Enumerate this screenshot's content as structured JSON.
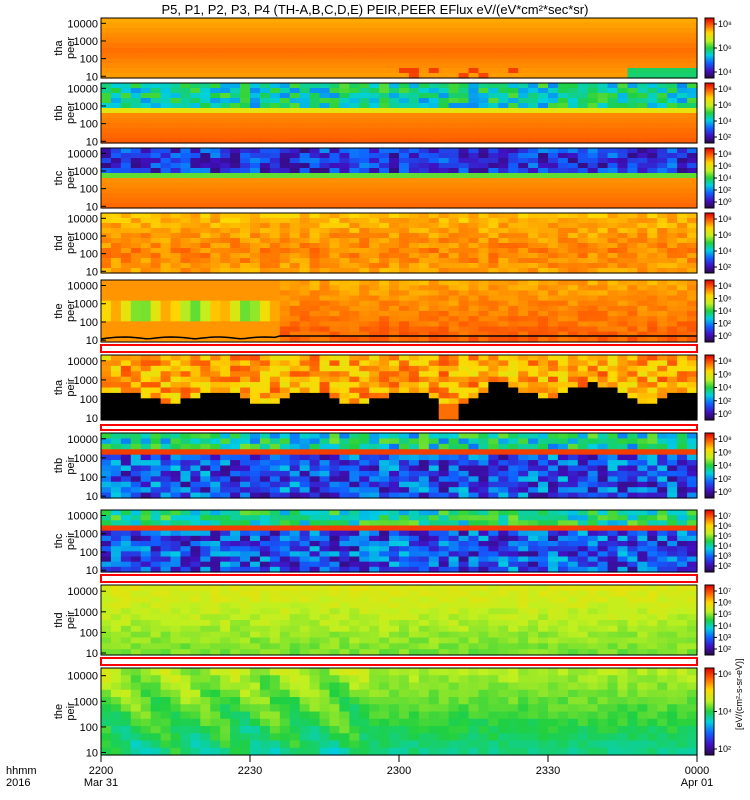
{
  "title": "P5, P1, P2, P3, P4 (TH-A,B,C,D,E) PEIR,PEER EFlux eV/(eV*cm²*sec*sr)",
  "colorbar_unit_label": "[eV/(cm²-s-sr-eV)]",
  "time_axis": {
    "row_label_1": "hhmm",
    "row_label_2": "2016",
    "ticks": [
      {
        "value": "2200",
        "sub": "Mar 31",
        "frac": 0.0
      },
      {
        "value": "2230",
        "sub": "",
        "frac": 0.25
      },
      {
        "value": "2300",
        "sub": "",
        "frac": 0.5
      },
      {
        "value": "2330",
        "sub": "",
        "frac": 0.75
      },
      {
        "value": "0000",
        "sub": "Apr 01",
        "frac": 1.0
      }
    ]
  },
  "chart_data": {
    "type": "heatmap",
    "x": {
      "start": "2016-03-31 22:00",
      "end": "2016-04-01 00:00",
      "ticks": [
        "2200",
        "2230",
        "2300",
        "2330",
        "0000"
      ]
    },
    "y_scale": "log",
    "y_ticks": [
      10,
      100,
      1000,
      10000
    ],
    "panels": [
      {
        "ylabel": [
          "tha",
          "peer"
        ],
        "cbar": [
          "10⁸",
          "10⁶",
          "10⁴"
        ],
        "style": "tha_peer"
      },
      {
        "ylabel": [
          "thb",
          "peer"
        ],
        "cbar": [
          "10⁸",
          "10⁶",
          "10⁴",
          "10²"
        ],
        "style": "thb_peer"
      },
      {
        "ylabel": [
          "thc",
          "peer"
        ],
        "cbar": [
          "10⁸",
          "10⁶",
          "10⁴",
          "10²",
          "10⁰"
        ],
        "style": "thc_peer"
      },
      {
        "ylabel": [
          "thd",
          "peer"
        ],
        "cbar": [
          "10⁸",
          "10⁶",
          "10⁴",
          "10²"
        ],
        "style": "thd_peer"
      },
      {
        "ylabel": [
          "the",
          "peer"
        ],
        "cbar": [
          "10⁸",
          "10⁶",
          "10⁴",
          "10²",
          "10⁰"
        ],
        "style": "the_peer"
      },
      {
        "ylabel": [
          "tha",
          "peir"
        ],
        "cbar": [
          "10⁸",
          "10⁶",
          "10⁴",
          "10²",
          "10⁰"
        ],
        "style": "tha_peir"
      },
      {
        "ylabel": [
          "thb",
          "peir"
        ],
        "cbar": [
          "10⁸",
          "10⁶",
          "10⁴",
          "10²",
          "10⁰"
        ],
        "style": "thb_peir"
      },
      {
        "ylabel": [
          "thc",
          "peir"
        ],
        "cbar": [
          "10⁷",
          "10⁶",
          "10⁵",
          "10⁴",
          "10³",
          "10²"
        ],
        "style": "thc_peir"
      },
      {
        "ylabel": [
          "thd",
          "peir"
        ],
        "cbar": [
          "10⁷",
          "10⁶",
          "10⁵",
          "10⁴",
          "10³",
          "10²"
        ],
        "style": "thd_peir"
      },
      {
        "ylabel": [
          "the",
          "peir"
        ],
        "cbar": [
          "10⁶",
          "10⁴",
          "10²"
        ],
        "style": "the_peir"
      }
    ]
  }
}
